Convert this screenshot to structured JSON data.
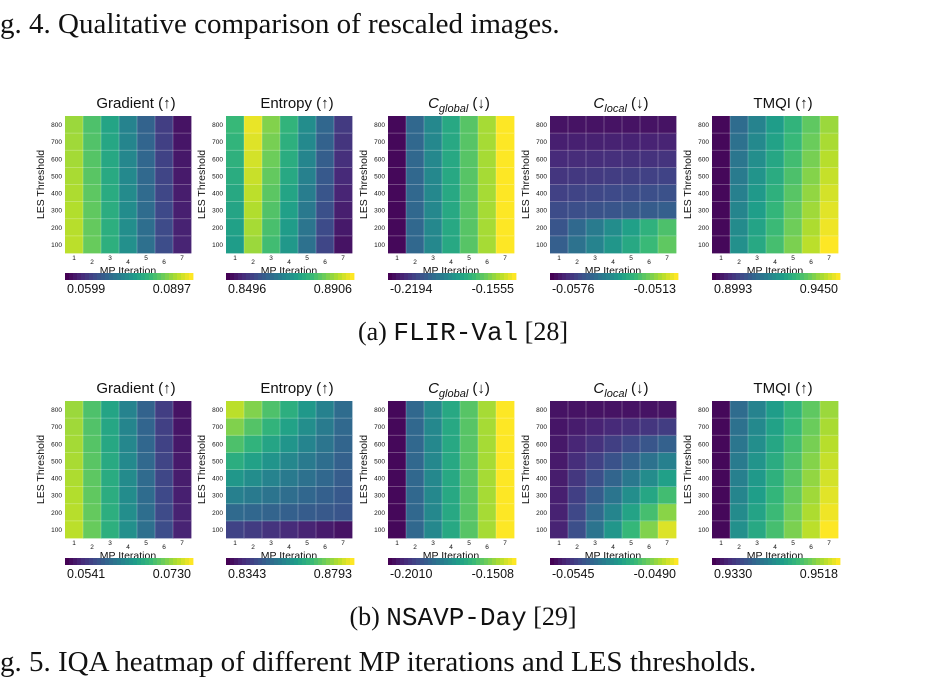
{
  "page": {
    "fig4_caption": "g. 4.  Qualitative comparison of rescaled images.",
    "fig5_caption": "g. 5.  IQA heatmap of different MP iterations and LES thresholds."
  },
  "chart_data": [
    {
      "type": "heatmap",
      "dataset": "FLIR-Val",
      "dataset_ref": "[28]",
      "subfigure": "(a)",
      "xlabel": "MP Iteration",
      "ylabel": "LES Threshold",
      "x": [
        1,
        2,
        3,
        4,
        5,
        6,
        7
      ],
      "y": [
        100,
        200,
        300,
        400,
        500,
        600,
        700,
        800
      ],
      "colormap": "viridis",
      "panels": [
        {
          "metric": "Gradient",
          "arrow": "(↑)",
          "colorbar": [
            "0.0599",
            "0.0897"
          ],
          "pattern": "decrease_x"
        },
        {
          "metric": "Entropy",
          "arrow": "(↑)",
          "colorbar": [
            "0.8496",
            "0.8906"
          ],
          "pattern": "entropy_a"
        },
        {
          "metric": "C",
          "subscript": "global",
          "arrow": "(↓)",
          "colorbar": [
            "-0.2194",
            "-0.1555"
          ],
          "pattern": "increase_x"
        },
        {
          "metric": "C",
          "subscript": "local",
          "arrow": "(↓)",
          "colorbar": [
            "-0.0576",
            "-0.0513"
          ],
          "pattern": "clocal_a"
        },
        {
          "metric": "TMQI",
          "arrow": "(↑)",
          "colorbar": [
            "0.8993",
            "0.9450"
          ],
          "pattern": "tmqi"
        }
      ]
    },
    {
      "type": "heatmap",
      "dataset": "NSAVP-Day",
      "dataset_ref": "[29]",
      "subfigure": "(b)",
      "xlabel": "MP Iteration",
      "ylabel": "LES Threshold",
      "x": [
        1,
        2,
        3,
        4,
        5,
        6,
        7
      ],
      "y": [
        100,
        200,
        300,
        400,
        500,
        600,
        700,
        800
      ],
      "colormap": "viridis",
      "panels": [
        {
          "metric": "Gradient",
          "arrow": "(↑)",
          "colorbar": [
            "0.0541",
            "0.0730"
          ],
          "pattern": "decrease_x"
        },
        {
          "metric": "Entropy",
          "arrow": "(↑)",
          "colorbar": [
            "0.8343",
            "0.8793"
          ],
          "pattern": "entropy_b"
        },
        {
          "metric": "C",
          "subscript": "global",
          "arrow": "(↓)",
          "colorbar": [
            "-0.2010",
            "-0.1508"
          ],
          "pattern": "increase_x"
        },
        {
          "metric": "C",
          "subscript": "local",
          "arrow": "(↓)",
          "colorbar": [
            "-0.0545",
            "-0.0490"
          ],
          "pattern": "clocal_b"
        },
        {
          "metric": "TMQI",
          "arrow": "(↑)",
          "colorbar": [
            "0.9330",
            "0.9518"
          ],
          "pattern": "tmqi"
        }
      ]
    }
  ]
}
